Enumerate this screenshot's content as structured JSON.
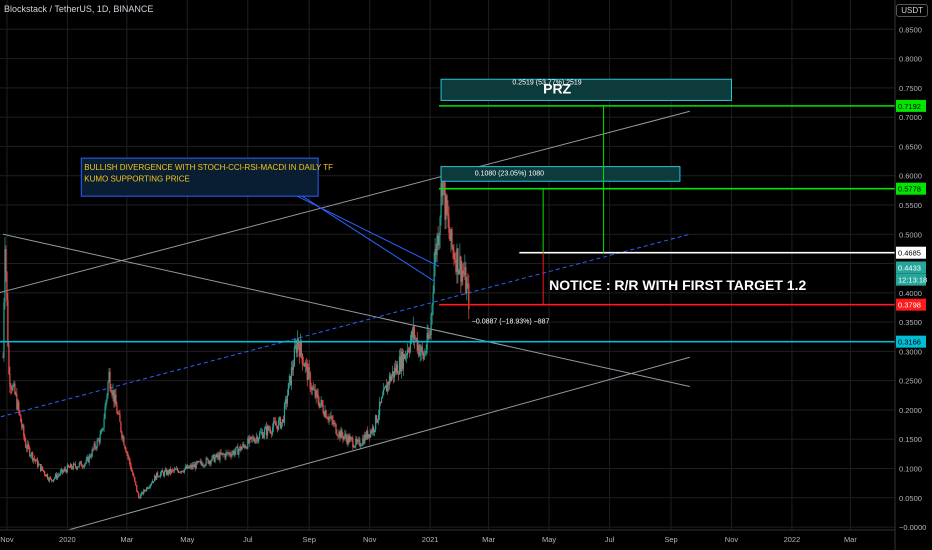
{
  "header": {
    "title": "Blockstack / TetherUS, 1D, BINANCE",
    "currency": "USDT"
  },
  "colors": {
    "bg": "#000000",
    "up": "#26a69a",
    "down": "#ef5350",
    "green": "#00e600",
    "red": "#ff1a1a",
    "cyan": "#00bcd4",
    "white": "#ffffff",
    "grid": "#1f1f1f",
    "trend": "#9598a1",
    "blue_dash": "#2962ff",
    "annot_text": "#f5c518"
  },
  "chart_data": {
    "type": "candlestick",
    "x_range": [
      "2019-10-25",
      "2022-04-15"
    ],
    "y_range": [
      -0.005,
      0.9
    ],
    "y_ticks": [
      {
        "v": 0.85,
        "label": "0.8500"
      },
      {
        "v": 0.8,
        "label": "0.8000"
      },
      {
        "v": 0.75,
        "label": "0.7500"
      },
      {
        "v": 0.7,
        "label": "0.7000"
      },
      {
        "v": 0.65,
        "label": "0.6500"
      },
      {
        "v": 0.6,
        "label": "0.6000"
      },
      {
        "v": 0.55,
        "label": "0.5500"
      },
      {
        "v": 0.5,
        "label": "0.5000"
      },
      {
        "v": 0.45,
        "label": "0.4500"
      },
      {
        "v": 0.4,
        "label": "0.4000"
      },
      {
        "v": 0.35,
        "label": "0.3500"
      },
      {
        "v": 0.3,
        "label": "0.3000"
      },
      {
        "v": 0.25,
        "label": "0.2500"
      },
      {
        "v": 0.2,
        "label": "0.2000"
      },
      {
        "v": 0.15,
        "label": "0.1500"
      },
      {
        "v": 0.1,
        "label": "0.1000"
      },
      {
        "v": 0.05,
        "label": "0.0500"
      },
      {
        "v": 0.0,
        "label": "−0.0000"
      }
    ],
    "x_ticks": [
      {
        "date": "2019-11-01",
        "label": "Nov"
      },
      {
        "date": "2020-01-01",
        "label": "2020"
      },
      {
        "date": "2020-03-01",
        "label": "Mar"
      },
      {
        "date": "2020-05-01",
        "label": "May"
      },
      {
        "date": "2020-07-01",
        "label": "Jul"
      },
      {
        "date": "2020-09-01",
        "label": "Sep"
      },
      {
        "date": "2020-11-01",
        "label": "Nov"
      },
      {
        "date": "2021-01-01",
        "label": "2021"
      },
      {
        "date": "2021-03-01",
        "label": "Mar"
      },
      {
        "date": "2021-05-01",
        "label": "May"
      },
      {
        "date": "2021-07-01",
        "label": "Jul"
      },
      {
        "date": "2021-09-01",
        "label": "Sep"
      },
      {
        "date": "2021-11-01",
        "label": "Nov"
      },
      {
        "date": "2022-01-01",
        "label": "2022"
      },
      {
        "date": "2022-03-01",
        "label": "Mar"
      }
    ],
    "price_path": [
      [
        "2019-10-28",
        0.29
      ],
      [
        "2019-10-30",
        0.5
      ],
      [
        "2019-11-03",
        0.26
      ],
      [
        "2019-11-10",
        0.22
      ],
      [
        "2019-11-20",
        0.14
      ],
      [
        "2019-12-01",
        0.11
      ],
      [
        "2019-12-15",
        0.08
      ],
      [
        "2020-01-01",
        0.1
      ],
      [
        "2020-01-20",
        0.11
      ],
      [
        "2020-02-05",
        0.16
      ],
      [
        "2020-02-12",
        0.26
      ],
      [
        "2020-02-25",
        0.16
      ],
      [
        "2020-03-13",
        0.05
      ],
      [
        "2020-04-01",
        0.09
      ],
      [
        "2020-05-01",
        0.1
      ],
      [
        "2020-06-01",
        0.12
      ],
      [
        "2020-06-20",
        0.13
      ],
      [
        "2020-07-15",
        0.16
      ],
      [
        "2020-08-05",
        0.18
      ],
      [
        "2020-08-20",
        0.32
      ],
      [
        "2020-09-05",
        0.23
      ],
      [
        "2020-09-20",
        0.19
      ],
      [
        "2020-10-01",
        0.16
      ],
      [
        "2020-10-20",
        0.14
      ],
      [
        "2020-11-05",
        0.17
      ],
      [
        "2020-11-20",
        0.25
      ],
      [
        "2020-12-05",
        0.29
      ],
      [
        "2020-12-15",
        0.33
      ],
      [
        "2020-12-25",
        0.29
      ],
      [
        "2021-01-01",
        0.33
      ],
      [
        "2021-01-05",
        0.45
      ],
      [
        "2021-01-10",
        0.52
      ],
      [
        "2021-01-13",
        0.6
      ],
      [
        "2021-01-16",
        0.55
      ],
      [
        "2021-01-22",
        0.48
      ],
      [
        "2021-01-28",
        0.46
      ],
      [
        "2021-02-04",
        0.43
      ],
      [
        "2021-02-09",
        0.39
      ]
    ],
    "annotations": {
      "divergence_text_1": "BULLISH DIVERGENCE WITH STOCH-CCI-RSI-MACDI IN DAILY TF",
      "divergence_text_2": "KUMO SUPPORTING PRICE",
      "prz_label": "PRZ",
      "prz_measure": "0.2519 (53.77%) 2519",
      "target1_measure": "0.1080 (23.05%) 1080",
      "stop_measure": "−0.0887 (−18.93%) −887",
      "notice": "NOTICE : R/R WITH FIRST TARGET 1.2"
    },
    "levels": [
      {
        "v": 0.7192,
        "label": "0.7192",
        "color": "#00e600",
        "text": "#000000"
      },
      {
        "v": 0.5778,
        "label": "0.5778",
        "color": "#00e600",
        "text": "#000000"
      },
      {
        "v": 0.4685,
        "label": "0.4685",
        "color": "#ffffff",
        "text": "#000000"
      },
      {
        "v": 0.3798,
        "label": "0.3798",
        "color": "#ff1a1a",
        "text": "#ffffff"
      },
      {
        "v": 0.3166,
        "label": "0.3166",
        "color": "#00bcd4",
        "text": "#000000"
      }
    ],
    "price_tags": [
      {
        "v": 0.4433,
        "label": "0.4433",
        "color": "#26a69a",
        "text": "#ffffff"
      },
      {
        "v": 0.4225,
        "label": "12:13:18",
        "color": "#26a69a",
        "text": "#ffffff"
      }
    ]
  }
}
